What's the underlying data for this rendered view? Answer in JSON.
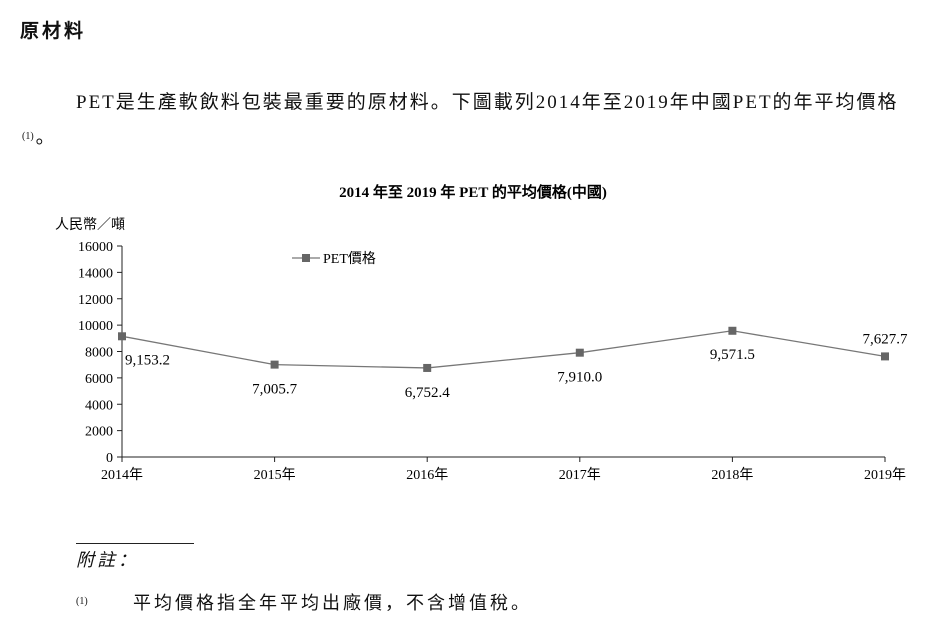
{
  "section_title": "原材料",
  "paragraph": {
    "text": "PET是生產軟飲料包裝最重要的原材料。下圖載列2014年至2019年中國PET的年平均價格",
    "footnote_ref": "(1)",
    "end": "。"
  },
  "chart_data": {
    "type": "line",
    "title": "2014 年至 2019 年 PET 的平均價格(中國)",
    "ylabel": "人民幣／噸",
    "xlabel": "",
    "categories": [
      "2014年",
      "2015年",
      "2016年",
      "2017年",
      "2018年",
      "2019年"
    ],
    "series": [
      {
        "name": "PET價格",
        "values": [
          9153.2,
          7005.7,
          6752.4,
          7910.0,
          9571.5,
          7627.7
        ]
      }
    ],
    "data_labels": [
      "9,153.2",
      "7,005.7",
      "6,752.4",
      "7,910.0",
      "9,571.5",
      "7,627.7"
    ],
    "yticks": [
      0,
      2000,
      4000,
      6000,
      8000,
      10000,
      12000,
      14000,
      16000
    ],
    "ylim": [
      0,
      16000
    ],
    "grid": false,
    "legend_position": "top-left",
    "line_color": "#777777",
    "marker_color": "#666666"
  },
  "notes": {
    "heading": "附註：",
    "items": [
      {
        "num": "(1)",
        "text": "平均價格指全年平均出廠價，不含增值稅。"
      }
    ]
  }
}
